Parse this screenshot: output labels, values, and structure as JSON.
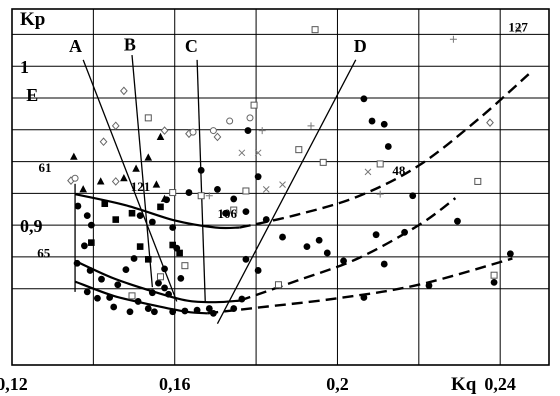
{
  "chart_data": {
    "type": "scatter",
    "title": "",
    "xlabel": "Kq",
    "ylabel": "Kp",
    "xlim": [
      0.12,
      0.252
    ],
    "ylim": [
      0.812,
      1.036
    ],
    "grid": true,
    "x_ticks": [
      {
        "value": 0.12,
        "label": "0,12"
      },
      {
        "value": 0.16,
        "label": "0,16"
      },
      {
        "value": 0.2,
        "label": "0,2"
      },
      {
        "value": 0.24,
        "label": "0,24"
      }
    ],
    "y_ticks": [
      {
        "value": 1.0,
        "label": "1"
      },
      {
        "value": 0.9,
        "label": "0,9"
      }
    ],
    "grid_x": [
      0.14,
      0.16,
      0.18,
      0.2,
      0.22,
      0.24
    ],
    "grid_y": [
      0.86,
      0.88,
      0.9,
      0.92,
      0.94,
      0.96,
      0.98,
      1.0,
      1.02
    ],
    "curves": [
      {
        "style": "solid",
        "points": [
          [
            0.1355,
            0.9195
          ],
          [
            0.148,
            0.9125
          ],
          [
            0.16,
            0.903
          ],
          [
            0.17,
            0.8985
          ],
          [
            0.176,
            0.8985
          ]
        ]
      },
      {
        "style": "dashed",
        "points": [
          [
            0.176,
            0.8985
          ],
          [
            0.19,
            0.9065
          ],
          [
            0.205,
            0.918
          ],
          [
            0.22,
            0.9375
          ],
          [
            0.235,
            0.9675
          ],
          [
            0.247,
            0.995
          ]
        ]
      },
      {
        "style": "solid",
        "points": [
          [
            0.1355,
            0.8775
          ],
          [
            0.145,
            0.8665
          ],
          [
            0.155,
            0.858
          ],
          [
            0.163,
            0.8525
          ],
          [
            0.17,
            0.8515
          ],
          [
            0.176,
            0.8525
          ]
        ]
      },
      {
        "style": "dashed",
        "points": [
          [
            0.176,
            0.8525
          ],
          [
            0.19,
            0.865
          ],
          [
            0.205,
            0.879
          ],
          [
            0.22,
            0.9
          ],
          [
            0.229,
            0.917
          ]
        ]
      },
      {
        "style": "solid",
        "points": [
          [
            0.1355,
            0.8645
          ],
          [
            0.145,
            0.8555
          ],
          [
            0.155,
            0.8495
          ],
          [
            0.163,
            0.8455
          ],
          [
            0.168,
            0.8445
          ]
        ]
      },
      {
        "style": "dashed",
        "points": [
          [
            0.168,
            0.8445
          ],
          [
            0.18,
            0.848
          ],
          [
            0.2,
            0.854
          ],
          [
            0.22,
            0.8625
          ],
          [
            0.243,
            0.879
          ]
        ]
      }
    ],
    "boundaries": [
      {
        "name": "E",
        "points": [
          [
            0.1355,
            0.858
          ],
          [
            0.1355,
            0.926
          ]
        ]
      },
      {
        "name": "A",
        "points": [
          [
            0.1375,
            1.004
          ],
          [
            0.1605,
            0.852
          ]
        ]
      },
      {
        "name": "B",
        "points": [
          [
            0.1495,
            1.007
          ],
          [
            0.1545,
            0.861
          ]
        ]
      },
      {
        "name": "C",
        "points": [
          [
            0.1655,
            1.004
          ],
          [
            0.1675,
            0.852
          ]
        ]
      },
      {
        "name": "D",
        "points": [
          [
            0.2045,
            1.004
          ],
          [
            0.1705,
            0.838
          ]
        ]
      }
    ],
    "curve_labels": [
      {
        "text": "A",
        "x": 0.134,
        "y": 1.009
      },
      {
        "text": "B",
        "x": 0.1475,
        "y": 1.01
      },
      {
        "text": "C",
        "x": 0.1625,
        "y": 1.009
      },
      {
        "text": "D",
        "x": 0.204,
        "y": 1.009
      },
      {
        "text": "E",
        "x": 0.1235,
        "y": 0.978
      }
    ],
    "point_labels": [
      {
        "text": "127",
        "x": 0.242,
        "y": 1.022
      },
      {
        "text": "61",
        "x": 0.1265,
        "y": 0.9335
      },
      {
        "text": "121",
        "x": 0.1492,
        "y": 0.9215
      },
      {
        "text": "106",
        "x": 0.1705,
        "y": 0.9045
      },
      {
        "text": "48",
        "x": 0.2135,
        "y": 0.9315
      },
      {
        "text": "65",
        "x": 0.1262,
        "y": 0.8795
      }
    ],
    "markers": {
      "filled_circle": [
        [
          0.1362,
          0.912
        ],
        [
          0.1385,
          0.906
        ],
        [
          0.1395,
          0.9
        ],
        [
          0.1378,
          0.887
        ],
        [
          0.136,
          0.876
        ],
        [
          0.1392,
          0.8715
        ],
        [
          0.142,
          0.866
        ],
        [
          0.146,
          0.8625
        ],
        [
          0.148,
          0.872
        ],
        [
          0.15,
          0.879
        ],
        [
          0.1385,
          0.858
        ],
        [
          0.141,
          0.854
        ],
        [
          0.144,
          0.8545
        ],
        [
          0.145,
          0.8485
        ],
        [
          0.149,
          0.8455
        ],
        [
          0.151,
          0.852
        ],
        [
          0.1535,
          0.8475
        ],
        [
          0.1545,
          0.8575
        ],
        [
          0.156,
          0.8635
        ],
        [
          0.1575,
          0.8605
        ],
        [
          0.1585,
          0.8565
        ],
        [
          0.155,
          0.8455
        ],
        [
          0.1595,
          0.8455
        ],
        [
          0.1625,
          0.846
        ],
        [
          0.1655,
          0.8465
        ],
        [
          0.1685,
          0.8475
        ],
        [
          0.1695,
          0.8445
        ],
        [
          0.1515,
          0.906
        ],
        [
          0.1545,
          0.902
        ],
        [
          0.158,
          0.916
        ],
        [
          0.1595,
          0.8985
        ],
        [
          0.1635,
          0.9205
        ],
        [
          0.1665,
          0.9345
        ],
        [
          0.1705,
          0.9225
        ],
        [
          0.1745,
          0.9165
        ],
        [
          0.1725,
          0.9075
        ],
        [
          0.1775,
          0.9085
        ],
        [
          0.1805,
          0.9305
        ],
        [
          0.178,
          0.9595
        ],
        [
          0.1775,
          0.8785
        ],
        [
          0.1805,
          0.8715
        ],
        [
          0.1825,
          0.9035
        ],
        [
          0.1865,
          0.8925
        ],
        [
          0.1925,
          0.8865
        ],
        [
          0.1955,
          0.8905
        ],
        [
          0.1975,
          0.8825
        ],
        [
          0.2065,
          0.9795
        ],
        [
          0.2085,
          0.9655
        ],
        [
          0.2115,
          0.9635
        ],
        [
          0.2125,
          0.9495
        ],
        [
          0.2185,
          0.9185
        ],
        [
          0.2165,
          0.8955
        ],
        [
          0.2065,
          0.8545
        ],
        [
          0.2225,
          0.862
        ],
        [
          0.2385,
          0.864
        ],
        [
          0.2425,
          0.882
        ],
        [
          0.2295,
          0.9025
        ],
        [
          0.2095,
          0.894
        ],
        [
          0.2115,
          0.8755
        ],
        [
          0.2015,
          0.8775
        ],
        [
          0.1605,
          0.8855
        ],
        [
          0.1575,
          0.8725
        ],
        [
          0.1615,
          0.8665
        ],
        [
          0.1745,
          0.8475
        ],
        [
          0.1765,
          0.8535
        ]
      ],
      "filled_square": [
        [
          0.1395,
          0.889
        ],
        [
          0.1428,
          0.9135
        ],
        [
          0.1455,
          0.9035
        ],
        [
          0.1495,
          0.9075
        ],
        [
          0.1515,
          0.8865
        ],
        [
          0.1535,
          0.8785
        ],
        [
          0.1565,
          0.9115
        ],
        [
          0.1595,
          0.8875
        ],
        [
          0.1612,
          0.8825
        ]
      ],
      "filled_triangle": [
        [
          0.1352,
          0.943
        ],
        [
          0.1375,
          0.9225
        ],
        [
          0.1418,
          0.9275
        ],
        [
          0.1475,
          0.9295
        ],
        [
          0.1505,
          0.9355
        ],
        [
          0.1555,
          0.9255
        ],
        [
          0.1575,
          0.9165
        ],
        [
          0.1535,
          0.9425
        ],
        [
          0.1565,
          0.9555
        ]
      ],
      "open_square": [
        [
          0.1595,
          0.9205
        ],
        [
          0.1665,
          0.9185
        ],
        [
          0.1745,
          0.9095
        ],
        [
          0.1795,
          0.9755
        ],
        [
          0.1905,
          0.9475
        ],
        [
          0.1945,
          1.023
        ],
        [
          0.1965,
          0.9395
        ],
        [
          0.2105,
          0.9385
        ],
        [
          0.2345,
          0.9275
        ],
        [
          0.2385,
          0.8685
        ],
        [
          0.1855,
          0.8625
        ],
        [
          0.1565,
          0.8675
        ],
        [
          0.1495,
          0.8555
        ],
        [
          0.1535,
          0.9675
        ],
        [
          0.1775,
          0.9215
        ],
        [
          0.1625,
          0.8745
        ]
      ],
      "open_diamond": [
        [
          0.1345,
          0.928
        ],
        [
          0.1425,
          0.9525
        ],
        [
          0.1455,
          0.9625
        ],
        [
          0.1475,
          0.9845
        ],
        [
          0.1575,
          0.9595
        ],
        [
          0.1635,
          0.9575
        ],
        [
          0.1705,
          0.9555
        ],
        [
          0.2375,
          0.9645
        ],
        [
          0.1455,
          0.9275
        ]
      ],
      "open_circle": [
        [
          0.1355,
          0.9295
        ],
        [
          0.1695,
          0.9595
        ],
        [
          0.1735,
          0.9655
        ],
        [
          0.1785,
          0.9675
        ],
        [
          0.1645,
          0.9585
        ]
      ],
      "cross": [
        [
          0.1765,
          0.9455
        ],
        [
          0.1805,
          0.9455
        ],
        [
          0.1825,
          0.9225
        ],
        [
          0.1865,
          0.9255
        ],
        [
          0.2075,
          0.9335
        ],
        [
          0.2445,
          1.023
        ]
      ],
      "plus": [
        [
          0.1815,
          0.9595
        ],
        [
          0.1935,
          0.9625
        ],
        [
          0.2285,
          1.017
        ],
        [
          0.2105,
          0.9195
        ],
        [
          0.1685,
          0.9185
        ]
      ]
    }
  }
}
